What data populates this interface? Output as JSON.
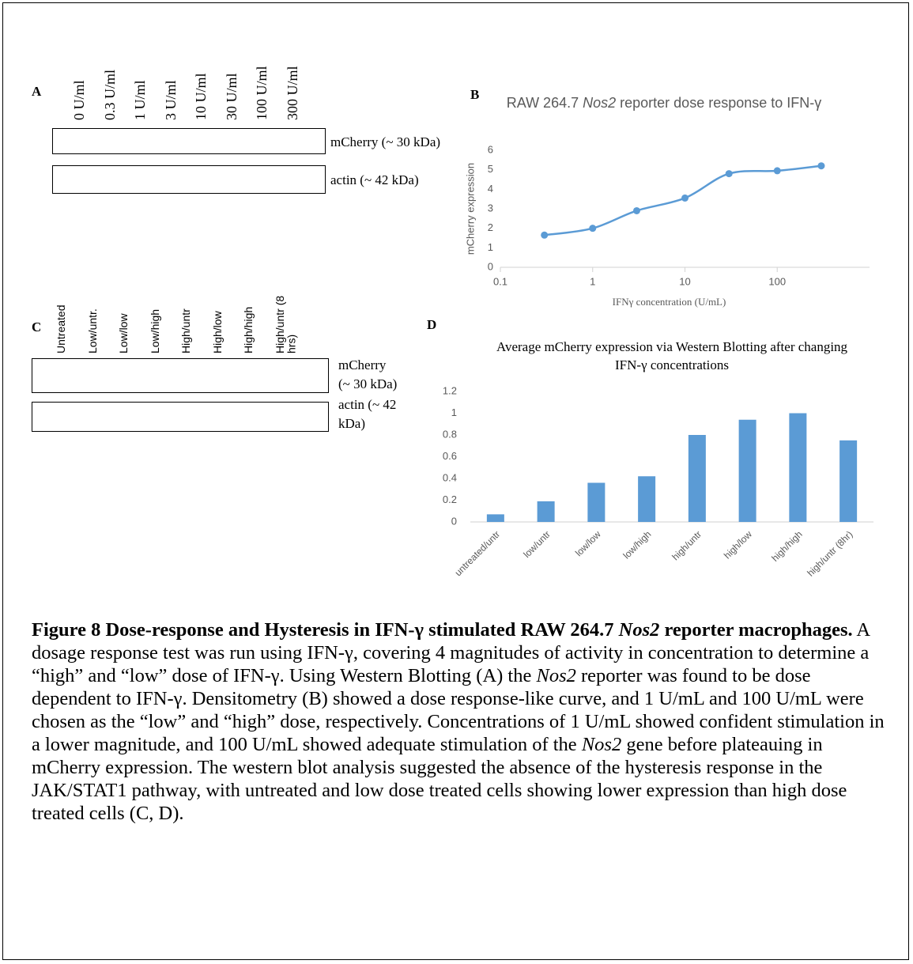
{
  "panels": {
    "a": {
      "label": "A",
      "lanes": [
        "0 U/ml",
        "0.3 U/ml",
        "1 U/ml",
        "3 U/ml",
        "10 U/ml",
        "30 U/ml",
        "100 U/ml",
        "300 U/ml"
      ],
      "rows": [
        "mCherry (~ 30 kDa)",
        "actin (~ 42 kDa)"
      ]
    },
    "b": {
      "label": "B"
    },
    "c": {
      "label": "C",
      "lanes": [
        "Untreated",
        "Low/untr.",
        "Low/low",
        "Low/high",
        "High/untr",
        "High/low",
        "High/high",
        "High/untr (8 hrs)"
      ],
      "rows": [
        "mCherry (~ 30 kDa)",
        "actin (~ 42 kDa)"
      ]
    },
    "d": {
      "label": "D"
    }
  },
  "chart_data": [
    {
      "type": "line",
      "title_runs": [
        {
          "text": "RAW 264.7 ",
          "style": "normal"
        },
        {
          "text": "Nos2",
          "style": "italic"
        },
        {
          "text": " reporter dose response to IFN-γ",
          "style": "normal"
        }
      ],
      "xlabel": "IFNγ concentration (U/mL)",
      "ylabel": "mCherry expression",
      "x": [
        0.3,
        1,
        3,
        10,
        30,
        100,
        300
      ],
      "values": [
        1.65,
        2.0,
        2.9,
        3.55,
        4.8,
        4.95,
        5.2
      ],
      "xscale": "log",
      "xlim": [
        0.1,
        1000
      ],
      "xticks": [
        0.1,
        1,
        10,
        100
      ],
      "ylim": [
        0,
        6
      ],
      "yticks": [
        0,
        1,
        2,
        3,
        4,
        5,
        6
      ],
      "color": "#5b9bd5",
      "smooth": true,
      "grid": false
    },
    {
      "type": "bar",
      "title": "Average mCherry expression via Western Blotting after changing IFN-γ concentrations",
      "categories": [
        "untreated/untr",
        "low/untr",
        "low/low",
        "low/high",
        "high/untr",
        "high/low",
        "high/high",
        "high/untr (8hr)"
      ],
      "values": [
        0.07,
        0.19,
        0.36,
        0.42,
        0.8,
        0.94,
        1.0,
        0.75
      ],
      "ylim": [
        0,
        1.2
      ],
      "yticks": [
        0,
        0.2,
        0.4,
        0.6,
        0.8,
        1,
        1.2
      ],
      "color": "#5b9bd5",
      "grid": false
    }
  ],
  "caption": {
    "runs": [
      {
        "text": "Figure 8 Dose-response and Hysteresis in IFN-γ stimulated RAW 264.7 ",
        "style": "bold"
      },
      {
        "text": "Nos2",
        "style": "bold-italic"
      },
      {
        "text": " reporter macrophages.",
        "style": "bold"
      },
      {
        "text": " A dosage response test was run using IFN-γ, covering 4 magnitudes of activity in concentration to determine a “high” and “low” dose of IFN-γ. Using Western Blotting (A) the ",
        "style": "normal"
      },
      {
        "text": "Nos2",
        "style": "italic"
      },
      {
        "text": " reporter was found to be dose dependent to IFN-γ. Densitometry (B) showed a dose response-like curve, and 1 U/mL and 100 U/mL were chosen as the “low” and “high” dose, respectively. Concentrations of 1 U/mL showed confident stimulation in a lower magnitude, and 100 U/mL showed adequate stimulation of the ",
        "style": "normal"
      },
      {
        "text": "Nos2",
        "style": "italic"
      },
      {
        "text": " gene before plateauing in mCherry expression. The western blot analysis suggested the absence of the hysteresis response in the JAK/STAT1 pathway, with untreated and low dose treated cells showing lower expression than high dose treated cells (C, D).",
        "style": "normal"
      }
    ]
  }
}
